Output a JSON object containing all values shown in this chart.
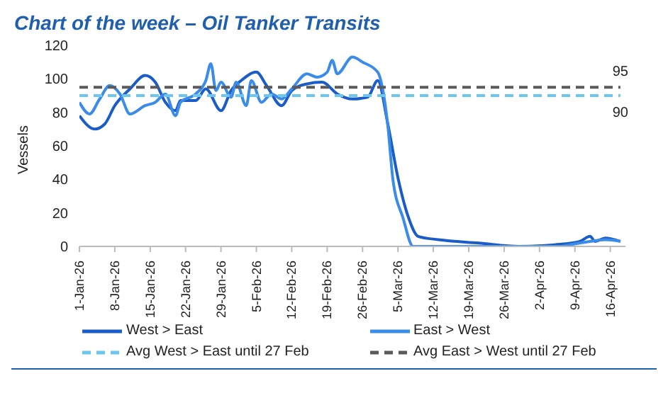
{
  "chart_data": {
    "type": "line",
    "title": "Chart of the week – Oil Tanker Transits",
    "ylabel": "Vessels",
    "xlim": [
      "--01-01",
      "--04-19"
    ],
    "xticks": [
      {
        "value": "--01-01",
        "label": "1-Jan-26"
      },
      {
        "value": "--01-08",
        "label": "8-Jan-26"
      },
      {
        "value": "--01-15",
        "label": "15-Jan-26"
      },
      {
        "value": "--01-22",
        "label": "22-Jan-26"
      },
      {
        "value": "--01-29",
        "label": "29-Jan-26"
      },
      {
        "value": "--02-05",
        "label": "5-Feb-26"
      },
      {
        "value": "--02-12",
        "label": "12-Feb-26"
      },
      {
        "value": "--02-19",
        "label": "19-Feb-26"
      },
      {
        "value": "--02-26",
        "label": "26-Feb-26"
      },
      {
        "value": "--03-05",
        "label": "5-Mar-26"
      },
      {
        "value": "--03-12",
        "label": "12-Mar-26"
      },
      {
        "value": "--03-19",
        "label": "19-Mar-26"
      },
      {
        "value": "--03-26",
        "label": "26-Mar-26"
      },
      {
        "value": "--04-02",
        "label": "2-Apr-26"
      },
      {
        "value": "--04-09",
        "label": "9-Apr-26"
      },
      {
        "value": "--04-16",
        "label": "16-Apr-26"
      }
    ],
    "ylim": [
      0,
      120
    ],
    "yticks": [
      0,
      20,
      40,
      60,
      80,
      100,
      120
    ],
    "series": [
      {
        "name": "West > East",
        "color": "#1a5cc8",
        "line_style": "solid",
        "x": [
          "--01-01",
          "--01-04",
          "--01-06",
          "--01-08",
          "--01-11",
          "--01-14",
          "--01-16",
          "--01-18",
          "--01-20",
          "--01-21",
          "--01-24",
          "--01-26",
          "--01-29",
          "--01-31",
          "--02-02",
          "--02-05",
          "--02-07",
          "--02-10",
          "--02-12",
          "--02-15",
          "--02-18",
          "--02-21",
          "--02-24",
          "--02-27",
          "--03-01",
          "--03-03",
          "--03-05",
          "--03-07",
          "--03-09",
          "--03-13",
          "--03-21",
          "--03-29",
          "--04-05",
          "--04-10",
          "--04-12",
          "--04-13",
          "--04-15",
          "--04-18"
        ],
        "values": [
          78,
          70,
          73,
          84,
          94,
          102,
          98,
          86,
          81,
          87,
          87,
          94,
          81,
          93,
          99,
          104,
          96,
          84,
          93,
          97,
          98,
          91,
          88,
          89,
          99,
          73,
          41,
          18,
          6,
          4,
          2,
          0,
          1,
          3,
          6,
          3,
          5,
          3
        ]
      },
      {
        "name": "East > West",
        "color": "#3a8ce8",
        "line_style": "solid",
        "x": [
          "--01-01",
          "--01-03",
          "--01-05",
          "--01-07",
          "--01-09",
          "--01-11",
          "--01-14",
          "--01-16",
          "--01-18",
          "--01-20",
          "--01-21",
          "--01-24",
          "--01-26",
          "--01-27",
          "--01-28",
          "--01-29",
          "--01-31",
          "--02-01",
          "--02-03",
          "--02-04",
          "--02-06",
          "--02-08",
          "--02-10",
          "--02-12",
          "--02-15",
          "--02-17",
          "--02-19",
          "--02-20",
          "--02-21",
          "--02-24",
          "--02-26",
          "--03-01",
          "--03-03",
          "--03-04",
          "--03-06",
          "--03-08",
          "--03-22",
          "--04-06",
          "--04-08",
          "--04-12",
          "--04-15",
          "--04-18"
        ],
        "values": [
          86,
          79,
          88,
          96,
          91,
          79,
          84,
          86,
          91,
          78,
          86,
          91,
          99,
          109,
          93,
          98,
          89,
          98,
          84,
          99,
          86,
          91,
          88,
          94,
          103,
          101,
          104,
          111,
          103,
          113,
          110,
          104,
          72,
          40,
          17,
          0,
          0,
          0,
          1,
          3,
          4,
          3
        ]
      },
      {
        "name": "Avg West > East until 27 Feb",
        "color": "#6cc6ee",
        "line_style": "dashed",
        "x": [
          "--01-01",
          "--04-18"
        ],
        "values": [
          90,
          90
        ]
      },
      {
        "name": "Avg East > West until 27 Feb",
        "color": "#5a5a5a",
        "line_style": "dashed",
        "x": [
          "--01-01",
          "--04-18"
        ],
        "values": [
          95,
          95
        ]
      }
    ],
    "annotations": [
      {
        "text": "95",
        "x": "--04-18",
        "y": 95
      },
      {
        "text": "90",
        "x": "--04-18",
        "y": 90
      }
    ],
    "legend": "bottom",
    "grid": false
  }
}
